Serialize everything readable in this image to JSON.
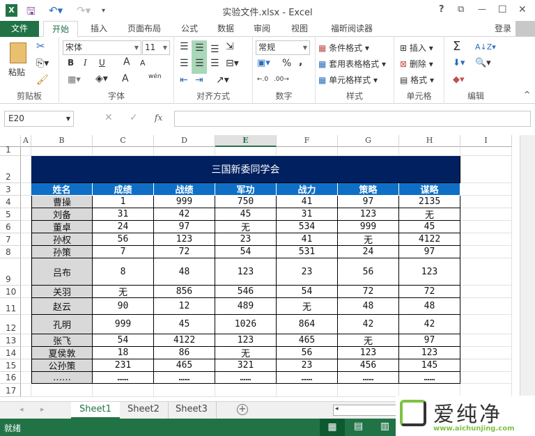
{
  "window": {
    "title": "实验文件.xlsx - Excel",
    "help": "?",
    "controls": [
      "?",
      "⧉",
      "—",
      "☐",
      "✕"
    ]
  },
  "tabs": {
    "file": "文件",
    "items": [
      "开始",
      "插入",
      "页面布局",
      "公式",
      "数据",
      "审阅",
      "视图",
      "福昕阅读器"
    ],
    "active": "开始",
    "login": "登录"
  },
  "ribbon": {
    "clipboard": {
      "label": "剪贴板",
      "paste": "粘贴"
    },
    "font": {
      "label": "字体",
      "name": "宋体",
      "size": "11",
      "bold": "B",
      "italic": "I",
      "underline": "U",
      "grow": "A",
      "shrink": "A",
      "color": "A",
      "phonetic": "wén"
    },
    "alignment": {
      "label": "对齐方式"
    },
    "number": {
      "label": "数字",
      "format": "常规",
      "percent": "%",
      "comma": ","
    },
    "styles": {
      "label": "样式",
      "conditional": "条件格式",
      "table": "套用表格格式",
      "cell": "单元格样式"
    },
    "cells": {
      "label": "单元格",
      "insert": "插入",
      "delete": "删除",
      "format": "格式"
    },
    "editing": {
      "label": "编辑",
      "sum": "Σ"
    }
  },
  "formula_bar": {
    "name_box": "E20",
    "fx": "fx",
    "value": ""
  },
  "sheet": {
    "columns": [
      "A",
      "B",
      "C",
      "D",
      "E",
      "F",
      "G",
      "H",
      "I"
    ],
    "selected_column": "E",
    "rows": [
      "1",
      "2",
      "3",
      "4",
      "5",
      "6",
      "7",
      "8",
      "9",
      "10",
      "11",
      "12",
      "13",
      "14",
      "15",
      "16",
      "17"
    ],
    "table_title": "三国新委同学会",
    "headers": [
      "姓名",
      "成绩",
      "战绩",
      "军功",
      "战力",
      "策略",
      "谋略"
    ],
    "data": [
      [
        "曹操",
        "1",
        "999",
        "750",
        "41",
        "97",
        "2135"
      ],
      [
        "刘备",
        "31",
        "42",
        "45",
        "31",
        "123",
        "无"
      ],
      [
        "董卓",
        "24",
        "97",
        "无",
        "534",
        "999",
        "45"
      ],
      [
        "孙权",
        "56",
        "123",
        "23",
        "41",
        "无",
        "4122"
      ],
      [
        "孙策",
        "7",
        "72",
        "54",
        "531",
        "24",
        "97"
      ],
      [
        "吕布",
        "8",
        "48",
        "123",
        "23",
        "56",
        "123"
      ],
      [
        "关羽",
        "无",
        "856",
        "546",
        "54",
        "72",
        "72"
      ],
      [
        "赵云",
        "90",
        "12",
        "489",
        "无",
        "48",
        "48"
      ],
      [
        "孔明",
        "999",
        "45",
        "1026",
        "864",
        "42",
        "42"
      ],
      [
        "张飞",
        "54",
        "4122",
        "123",
        "465",
        "无",
        "97"
      ],
      [
        "夏侯敦",
        "18",
        "86",
        "无",
        "56",
        "123",
        "123"
      ],
      [
        "公孙策",
        "231",
        "465",
        "321",
        "23",
        "456",
        "145"
      ],
      [
        "……",
        "……",
        "……",
        "……",
        "……",
        "……",
        "……"
      ]
    ],
    "colors": {
      "title_bg": "#002060",
      "header_bg": "#0f6fc6",
      "name_bg": "#d9d9d9"
    }
  },
  "sheet_tabs": {
    "items": [
      "Sheet1",
      "Sheet2",
      "Sheet3"
    ],
    "active": "Sheet1",
    "add": "+"
  },
  "status": {
    "text": "就绪"
  },
  "watermark": {
    "brand": "爱纯净",
    "url": "www.aichunjing.com"
  },
  "accent": "#217346"
}
